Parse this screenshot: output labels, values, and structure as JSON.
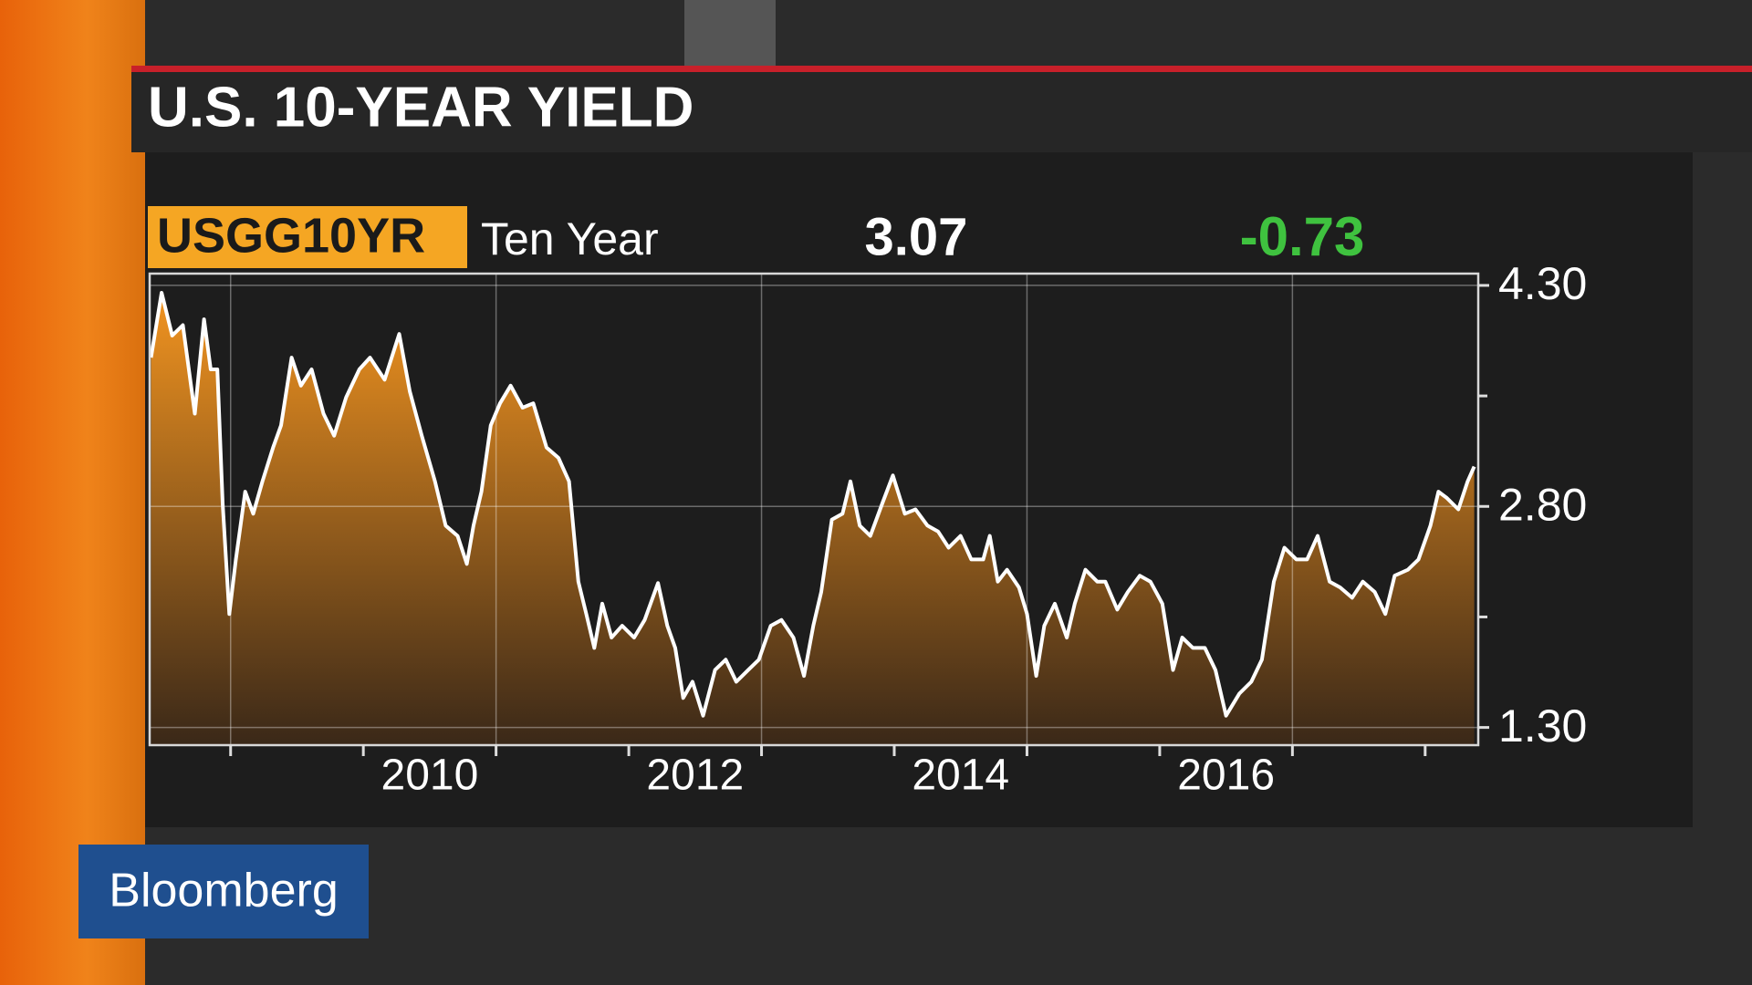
{
  "chart_data": {
    "type": "area",
    "title": "U.S. 10-YEAR YIELD",
    "brand": "Bloomberg",
    "series": [
      {
        "name": "Ten Year",
        "ticker": "USGG10YR",
        "last": 3.07,
        "change": -0.73,
        "color": "#ffffff",
        "fill_top": "#f29420",
        "fill_bottom": "#3a2818",
        "x": [
          2008.4,
          2008.48,
          2008.56,
          2008.64,
          2008.73,
          2008.8,
          2008.85,
          2008.9,
          2008.94,
          2008.99,
          2009.04,
          2009.11,
          2009.17,
          2009.24,
          2009.32,
          2009.38,
          2009.46,
          2009.53,
          2009.61,
          2009.7,
          2009.78,
          2009.87,
          2009.97,
          2010.05,
          2010.16,
          2010.27,
          2010.35,
          2010.44,
          2010.54,
          2010.62,
          2010.71,
          2010.78,
          2010.83,
          2010.89,
          2010.96,
          2011.03,
          2011.11,
          2011.2,
          2011.28,
          2011.38,
          2011.47,
          2011.55,
          2011.62,
          2011.68,
          2011.74,
          2011.8,
          2011.87,
          2011.95,
          2012.04,
          2012.12,
          2012.22,
          2012.29,
          2012.35,
          2012.41,
          2012.48,
          2012.56,
          2012.65,
          2012.73,
          2012.81,
          2012.9,
          2012.98,
          2013.07,
          2013.15,
          2013.24,
          2013.32,
          2013.39,
          2013.45,
          2013.53,
          2013.61,
          2013.67,
          2013.74,
          2013.82,
          2013.91,
          2013.99,
          2014.08,
          2014.16,
          2014.25,
          2014.33,
          2014.41,
          2014.5,
          2014.58,
          2014.67,
          2014.72,
          2014.78,
          2014.85,
          2014.94,
          2015.0,
          2015.07,
          2015.13,
          2015.21,
          2015.3,
          2015.36,
          2015.44,
          2015.53,
          2015.59,
          2015.68,
          2015.76,
          2015.85,
          2015.93,
          2016.02,
          2016.1,
          2016.17,
          2016.25,
          2016.34,
          2016.42,
          2016.5,
          2016.6,
          2016.69,
          2016.77,
          2016.86,
          2016.94,
          2017.03,
          2017.11,
          2017.19,
          2017.28,
          2017.36,
          2017.45,
          2017.53,
          2017.62,
          2017.7,
          2017.77,
          2017.87,
          2017.95,
          2018.04,
          2018.1,
          2018.16,
          2018.25,
          2018.32,
          2018.37
        ],
        "values": [
          3.81,
          4.25,
          3.96,
          4.03,
          3.43,
          4.07,
          3.73,
          3.73,
          2.82,
          2.07,
          2.44,
          2.9,
          2.75,
          2.97,
          3.2,
          3.35,
          3.81,
          3.62,
          3.73,
          3.43,
          3.28,
          3.54,
          3.73,
          3.81,
          3.66,
          3.97,
          3.58,
          3.28,
          2.97,
          2.67,
          2.6,
          2.41,
          2.67,
          2.9,
          3.35,
          3.5,
          3.62,
          3.47,
          3.5,
          3.2,
          3.13,
          2.97,
          2.29,
          2.07,
          1.84,
          2.14,
          1.91,
          1.99,
          1.91,
          2.03,
          2.28,
          1.99,
          1.84,
          1.5,
          1.61,
          1.38,
          1.69,
          1.76,
          1.61,
          1.69,
          1.76,
          1.99,
          2.03,
          1.91,
          1.65,
          1.99,
          2.22,
          2.71,
          2.75,
          2.97,
          2.67,
          2.6,
          2.82,
          3.01,
          2.75,
          2.78,
          2.67,
          2.63,
          2.52,
          2.6,
          2.44,
          2.44,
          2.6,
          2.29,
          2.37,
          2.25,
          2.07,
          1.65,
          1.99,
          2.14,
          1.91,
          2.14,
          2.37,
          2.29,
          2.29,
          2.1,
          2.22,
          2.33,
          2.29,
          2.14,
          1.69,
          1.91,
          1.84,
          1.84,
          1.69,
          1.38,
          1.53,
          1.61,
          1.76,
          2.29,
          2.52,
          2.44,
          2.44,
          2.6,
          2.29,
          2.25,
          2.18,
          2.29,
          2.22,
          2.07,
          2.33,
          2.37,
          2.44,
          2.67,
          2.9,
          2.86,
          2.78,
          2.97,
          3.07
        ]
      }
    ],
    "xlim": [
      2008.39,
      2018.4
    ],
    "xticks": [
      2009,
      2010,
      2011,
      2012,
      2013,
      2014,
      2015,
      2016,
      2017,
      2018
    ],
    "xlabels": [
      2010,
      2012,
      2014,
      2016
    ],
    "xgrid": [
      2009,
      2011,
      2013,
      2015,
      2017
    ],
    "ylim": [
      1.18,
      4.38
    ],
    "yticks": [
      {
        "value": 4.3,
        "label": "4.30"
      },
      {
        "value": 2.8,
        "label": "2.80"
      },
      {
        "value": 1.3,
        "label": "1.30"
      }
    ],
    "yminor_ticks": [
      3.55,
      2.05
    ],
    "grid": true
  }
}
